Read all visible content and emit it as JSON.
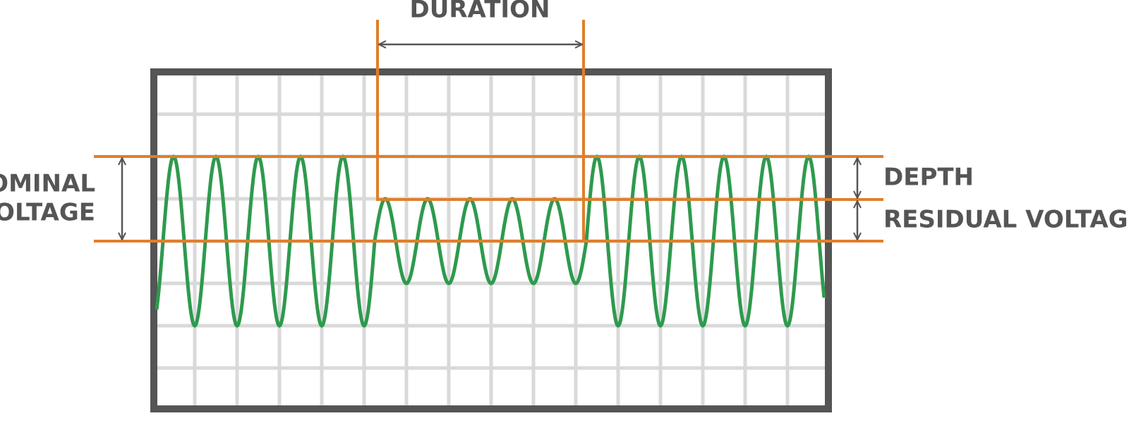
{
  "labels": {
    "duration": "DURATION",
    "nominal_voltage": [
      "NOMINAL",
      "VOLTAGE"
    ],
    "depth": "DEPTH",
    "residual_voltage": "RESIDUAL VOLTAGE"
  }
}
